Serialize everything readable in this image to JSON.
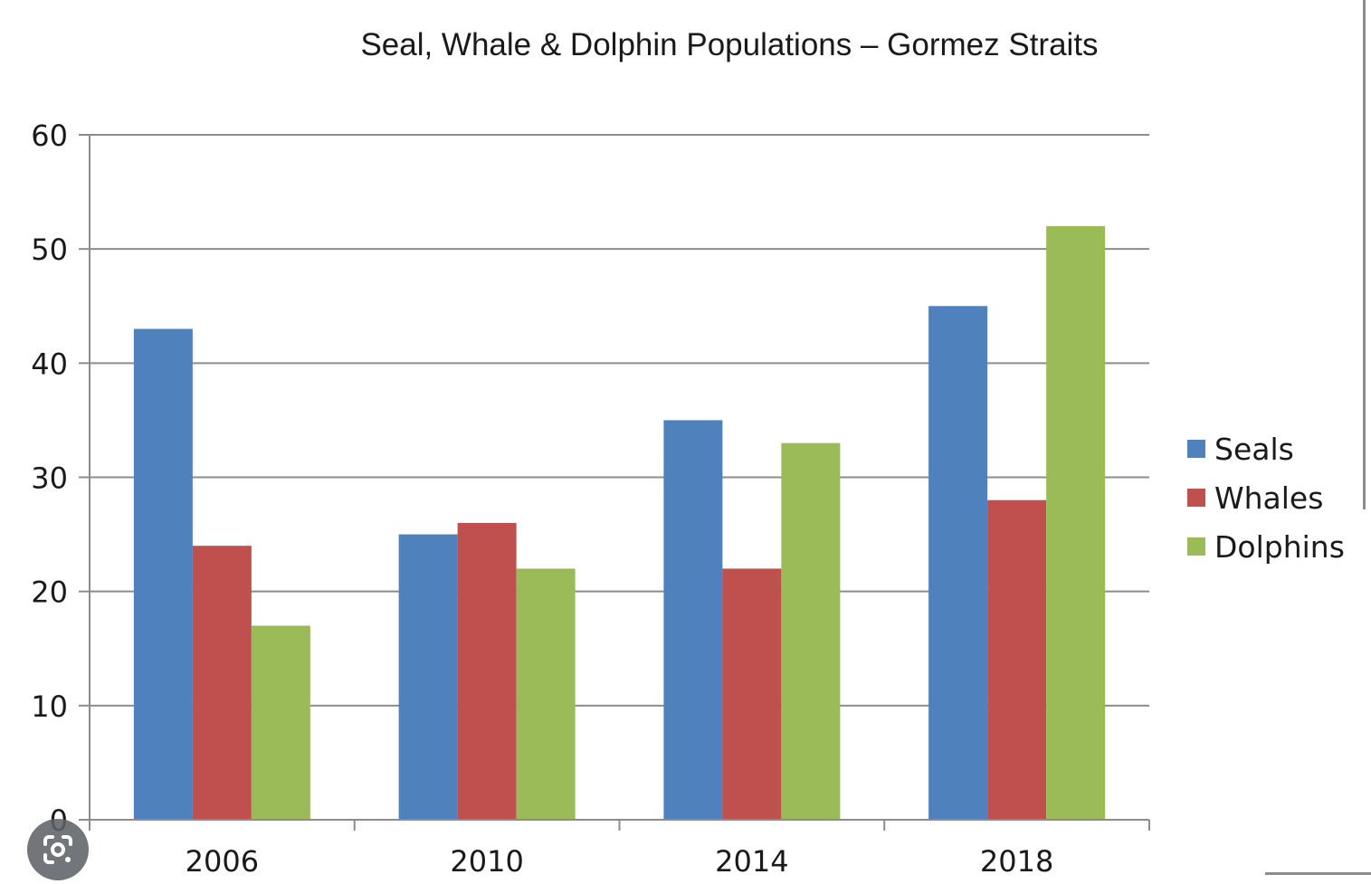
{
  "chart_data": {
    "type": "bar",
    "title": "Seal, Whale & Dolphin Populations – Gormez Straits",
    "categories": [
      "2006",
      "2010",
      "2014",
      "2018"
    ],
    "series": [
      {
        "name": "Seals",
        "values": [
          43,
          25,
          35,
          45
        ],
        "color": "#4f81bd"
      },
      {
        "name": "Whales",
        "values": [
          24,
          26,
          22,
          28
        ],
        "color": "#c0504d"
      },
      {
        "name": "Dolphins",
        "values": [
          17,
          22,
          33,
          52
        ],
        "color": "#9bbb59"
      }
    ],
    "y_ticks": [
      "0",
      "10",
      "20",
      "30",
      "40",
      "50",
      "60"
    ],
    "ylim": [
      0,
      60
    ],
    "xlabel": "",
    "ylabel": "",
    "grid": true,
    "legend_position": "right"
  },
  "icons": {
    "lens": "visual-search-icon"
  }
}
